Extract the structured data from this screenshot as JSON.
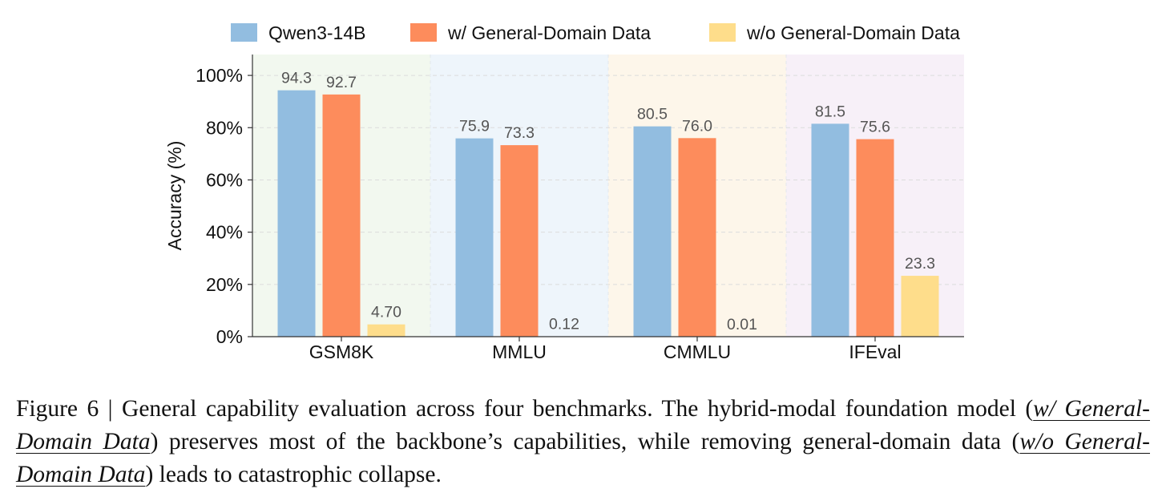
{
  "chart_data": {
    "type": "bar",
    "categories": [
      "GSM8K",
      "MMLU",
      "CMMLU",
      "IFEval"
    ],
    "series": [
      {
        "name": "Qwen3-14B",
        "values": [
          94.3,
          75.9,
          80.5,
          81.5
        ],
        "labels": [
          "94.3",
          "75.9",
          "80.5",
          "81.5"
        ],
        "color": "#92bde0"
      },
      {
        "name": "w/ General-Domain Data",
        "values": [
          92.7,
          73.3,
          76.0,
          75.6
        ],
        "labels": [
          "92.7",
          "73.3",
          "76.0",
          "75.6"
        ],
        "color": "#fd8c5c"
      },
      {
        "name": "w/o General-Domain Data",
        "values": [
          4.7,
          0.12,
          0.01,
          23.3
        ],
        "labels": [
          "4.70",
          "0.12",
          "0.01",
          "23.3"
        ],
        "color": "#fedd8b"
      }
    ],
    "category_backgrounds": [
      "#f2f8ef",
      "#eef5fb",
      "#fdf6ea",
      "#f7f0f8"
    ],
    "title": "",
    "xlabel": "",
    "ylabel": "Accuracy (%)",
    "ylim": [
      0,
      108
    ],
    "yticks": [
      0,
      20,
      40,
      60,
      80,
      100
    ],
    "ytick_labels": [
      "0%",
      "20%",
      "40%",
      "60%",
      "80%",
      "100%"
    ],
    "grid": true,
    "legend_position": "top"
  },
  "caption": {
    "prefix": "Figure 6 | General capability evaluation across four benchmarks. The hybrid-modal foundation model (",
    "em1": "w/ General-Domain Data",
    "mid": ") preserves most of the backbone’s capabilities, while removing general-domain data (",
    "em2": "w/o General-Domain Data",
    "suffix": ") leads to catastrophic collapse."
  }
}
